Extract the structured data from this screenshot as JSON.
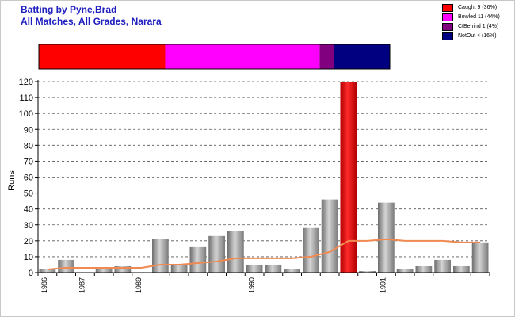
{
  "header": {
    "title": "Batting by Pyne,Brad",
    "subtitle": "All Matches, All Grades, Narara"
  },
  "legend": [
    {
      "label": "Caught 9 (36%)",
      "color": "#ff0000"
    },
    {
      "label": "Bowled 11 (44%)",
      "color": "#ff00ff"
    },
    {
      "label": "CtBehind 1 (4%)",
      "color": "#800080"
    },
    {
      "label": "NotOut 4 (16%)",
      "color": "#000080"
    }
  ],
  "dismissal_bar": [
    {
      "name": "Caught",
      "share": 0.36,
      "color": "#ff0000"
    },
    {
      "name": "Bowled",
      "share": 0.44,
      "color": "#ff00ff"
    },
    {
      "name": "CtBehind",
      "share": 0.04,
      "color": "#800080"
    },
    {
      "name": "NotOut",
      "share": 0.16,
      "color": "#000080"
    }
  ],
  "chart_data": {
    "type": "bar",
    "ylabel": "Runs",
    "ylim": [
      0,
      120
    ],
    "yticks": [
      0,
      10,
      20,
      30,
      40,
      50,
      60,
      70,
      80,
      90,
      100,
      110,
      120
    ],
    "grid": true,
    "values": [
      2,
      8,
      0,
      3,
      4,
      0,
      21,
      5,
      16,
      23,
      26,
      5,
      5,
      2,
      28,
      46,
      120,
      1,
      44,
      2,
      4,
      8,
      4,
      19
    ],
    "highlight_index": 16,
    "highlight_color": "#ff0000",
    "bar_color": "#a0a0a0",
    "average_line": [
      2,
      3,
      3,
      3,
      3,
      3,
      5,
      5,
      6,
      7,
      9,
      9,
      9,
      9,
      10,
      13,
      20,
      20,
      21,
      20,
      20,
      20,
      19,
      19
    ],
    "average_color": "#f08a50",
    "xtick_labels": [
      {
        "label": "1986",
        "index": 0
      },
      {
        "label": "1987",
        "index": 2
      },
      {
        "label": "1989",
        "index": 5
      },
      {
        "label": "1990",
        "index": 11
      },
      {
        "label": "1991",
        "index": 18
      }
    ]
  }
}
